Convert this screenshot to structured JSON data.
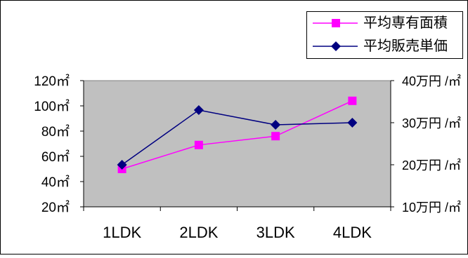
{
  "chart_data": {
    "type": "line",
    "title": "",
    "categories": [
      "1LDK",
      "2LDK",
      "3LDK",
      "4LDK"
    ],
    "left_axis": {
      "ticks": [
        "20㎡",
        "40㎡",
        "60㎡",
        "80㎡",
        "100㎡",
        "120㎡"
      ],
      "tick_values": [
        20,
        40,
        60,
        80,
        100,
        120
      ],
      "ylim": [
        20,
        120
      ]
    },
    "right_axis": {
      "ticks": [
        "10万円 /㎡",
        "20万円 /㎡",
        "30万円 /㎡",
        "40万円 /㎡"
      ],
      "tick_values": [
        10,
        20,
        30,
        40
      ],
      "ylim": [
        10,
        40
      ]
    },
    "series": [
      {
        "name": "平均専有面積",
        "axis": "left",
        "values": [
          50,
          69,
          76,
          104
        ],
        "color": "#ff00ff",
        "marker": "square"
      },
      {
        "name": "平均販売単価",
        "axis": "right",
        "values": [
          20,
          33,
          29.5,
          30
        ],
        "color": "#000080",
        "marker": "diamond"
      }
    ],
    "plot_background": "#c0c0c0",
    "legend_position": "top-right",
    "grid": false
  }
}
